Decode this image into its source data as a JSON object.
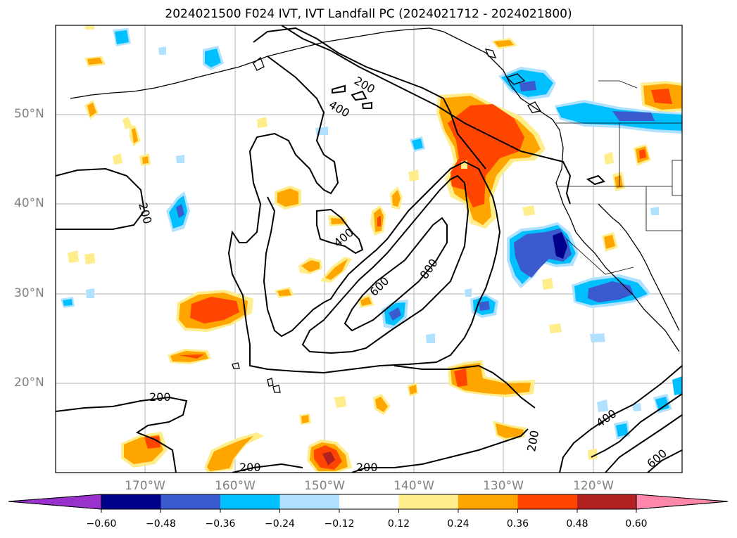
{
  "title": "2024021500 F024 IVT, IVT Landfall PC (2024021712 - 2024021800)",
  "map": {
    "lat_labels": [
      "50°N",
      "40°N",
      "30°N",
      "20°N"
    ],
    "lon_labels": [
      "170°W",
      "160°W",
      "150°W",
      "140°W",
      "130°W",
      "120°W"
    ],
    "contour_labels": [
      "200",
      "400",
      "200",
      "400",
      "600",
      "800",
      "200",
      "200",
      "200",
      "200",
      "400",
      "600"
    ]
  },
  "colorbar": {
    "ticks": [
      "−0.60",
      "−0.48",
      "−0.36",
      "−0.24",
      "−0.12",
      "0.12",
      "0.24",
      "0.36",
      "0.48",
      "0.60"
    ],
    "colors": [
      "#9932cc",
      "#00008b",
      "#3a5acd",
      "#00bfff",
      "#b0e2ff",
      "#ffffff",
      "#ffec8b",
      "#ffa500",
      "#ff4500",
      "#b22222",
      "#ff88aa"
    ]
  }
}
